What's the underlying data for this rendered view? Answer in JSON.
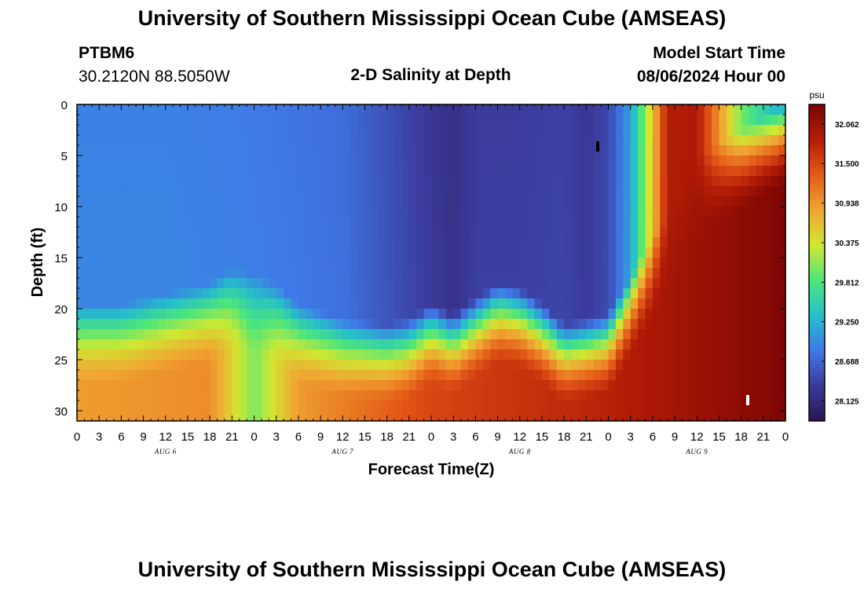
{
  "header": {
    "title": "University of Southern Mississippi Ocean Cube (AMSEAS)",
    "station_id": "PTBM6",
    "station_coords": "30.2120N  88.5050W",
    "subtitle": "2-D Salinity at Depth",
    "model_start_label": "Model Start Time",
    "model_start_value": "08/06/2024 Hour 00"
  },
  "footer": {
    "title": "University of Southern Mississippi Ocean Cube (AMSEAS)"
  },
  "chart_data": {
    "type": "heatmap",
    "title": "2-D Salinity at Depth",
    "xlabel": "Forecast Time(Z)",
    "ylabel": "Depth (ft)",
    "x_range_hours": [
      0,
      96
    ],
    "y_range_ft": [
      0,
      31
    ],
    "x_tick_labels": [
      "0",
      "3",
      "6",
      "9",
      "12",
      "15",
      "18",
      "21",
      "0",
      "3",
      "6",
      "9",
      "12",
      "15",
      "18",
      "21",
      "0",
      "3",
      "6",
      "9",
      "12",
      "15",
      "18",
      "21",
      "0",
      "3",
      "6",
      "9",
      "12",
      "15",
      "18",
      "21",
      "0",
      "3",
      "6",
      "9",
      "12",
      "15",
      "18",
      "21",
      "0"
    ],
    "x_tick_hours": [
      0,
      3,
      6,
      9,
      12,
      15,
      18,
      21,
      24,
      27,
      30,
      33,
      36,
      39,
      42,
      45,
      48,
      51,
      54,
      57,
      60,
      63,
      66,
      69,
      72,
      75,
      78,
      81,
      84,
      87,
      90,
      93,
      96
    ],
    "y_ticks": [
      0,
      5,
      10,
      15,
      20,
      25,
      30
    ],
    "date_labels": [
      {
        "label": "AUG 6",
        "hour": 12
      },
      {
        "label": "AUG 7",
        "hour": 36
      },
      {
        "label": "AUG 8",
        "hour": 60
      },
      {
        "label": "AUG 9",
        "hour": 84
      }
    ],
    "colorbar": {
      "unit": "psu",
      "min": 27.84,
      "max": 32.34,
      "tick_labels": [
        "32.062",
        "31.500",
        "30.938",
        "30.375",
        "29.812",
        "29.250",
        "28.688",
        "28.125"
      ],
      "tick_values": [
        32.062,
        31.5,
        30.938,
        30.375,
        29.812,
        29.25,
        28.688,
        28.125
      ],
      "colors": [
        "#2a1650",
        "#3b3a9a",
        "#3f79e8",
        "#25c0c9",
        "#4de67a",
        "#d0e831",
        "#f0a532",
        "#e45a18",
        "#b41d07",
        "#7a0403"
      ]
    },
    "surface_salinity": {
      "hours": [
        0,
        12,
        24,
        36,
        48,
        51,
        54,
        60,
        66,
        69,
        72,
        75,
        78,
        80,
        84,
        90,
        96
      ],
      "values": [
        28.9,
        28.9,
        28.85,
        28.75,
        28.3,
        28.2,
        28.35,
        28.35,
        28.4,
        28.3,
        28.45,
        29.1,
        30.6,
        31.85,
        31.9,
        30.0,
        29.1
      ]
    },
    "halocline_depth_ft": {
      "hours": [
        0,
        6,
        12,
        18,
        21,
        24,
        27,
        30,
        36,
        42,
        45,
        48,
        51,
        54,
        57,
        60,
        63,
        66,
        69,
        72,
        78,
        84,
        96
      ],
      "values": [
        21.5,
        21.5,
        20.5,
        19.5,
        18.0,
        18.5,
        19.5,
        21.5,
        23.0,
        23.5,
        23.0,
        21.5,
        22.5,
        21.0,
        19.5,
        20.0,
        21.5,
        23.5,
        23.0,
        22.5,
        15.0,
        7.0,
        2.0
      ]
    },
    "bottom_salinity": {
      "hours": [
        0,
        18,
        24,
        30,
        48,
        72,
        96
      ],
      "values": [
        30.9,
        31.0,
        30.0,
        30.9,
        31.5,
        31.8,
        32.3
      ]
    }
  }
}
